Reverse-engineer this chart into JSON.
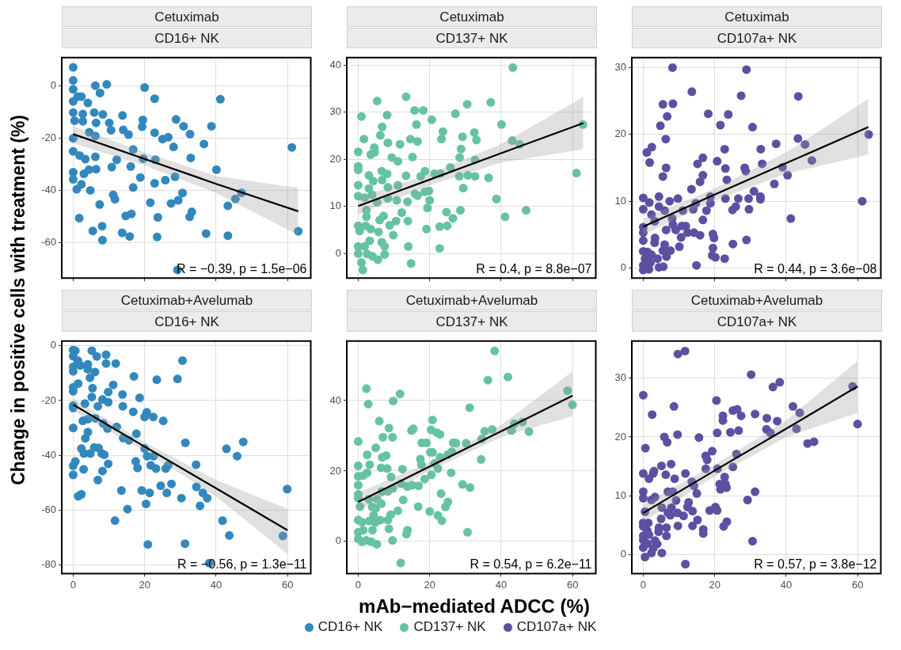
{
  "chart_data": [
    {
      "type": "scatter",
      "title": "Cetuximab",
      "subtitle": "CD16+ NK",
      "annotations": [
        "R = −0.39, p = 1.5e−06"
      ],
      "xlim": [
        -3.2,
        66.5
      ],
      "xticks": [
        0,
        20,
        40,
        60
      ],
      "ylim": [
        -73.5,
        10.7
      ],
      "yticks": [
        -60,
        -40,
        -20,
        0
      ],
      "tick_labels": "y",
      "grid": true,
      "series": [
        {
          "type": "scatter",
          "marker": "circle",
          "color": "#3288bd",
          "x": [
            0,
            0,
            0,
            0,
            1.3,
            2.3,
            4.1,
            6.2,
            9.4,
            7.5,
            20,
            22.8,
            41.2,
            0,
            2.7,
            5.9,
            8.3,
            13.8,
            0.4,
            2.7,
            6.4,
            10.1,
            19.5,
            28.8,
            30.9,
            38.7,
            19.3,
            10.6,
            14,
            15.5,
            0,
            4.5,
            6.2,
            22.8,
            25,
            26.6,
            32.7,
            28.1,
            36.6,
            61.2,
            0,
            1.8,
            3.4,
            6.2,
            12.2,
            16.8,
            19.6,
            23,
            32.9,
            0,
            0,
            3,
            4.4,
            6.4,
            10.8,
            16.1,
            18.8,
            16.8,
            22.8,
            25.8,
            28.5,
            40.1,
            1,
            2.3,
            4.8,
            11.2,
            11.7,
            21.6,
            27.4,
            30.6,
            29.4,
            43.3,
            45.4,
            47.1,
            7.4,
            1.7,
            14.7,
            16.3,
            23.7,
            33.2,
            32.6,
            8.1,
            5.5,
            8.2,
            13.7,
            15.8,
            23.5,
            37.2,
            43.3,
            63,
            29.2
          ],
          "values": [
            7,
            2,
            -1.4,
            -6,
            -4.2,
            -4.2,
            -6.6,
            0,
            0.5,
            -2.8,
            -0.7,
            -5,
            -5.2,
            -10.3,
            -10.8,
            -10.3,
            -11,
            -11.4,
            -13.4,
            -13.6,
            -14.2,
            -14.2,
            -13.1,
            -12.9,
            -15.5,
            -15.5,
            -15.7,
            -17,
            -16.9,
            -18.7,
            -20.1,
            -17.8,
            -19.2,
            -18,
            -20.4,
            -19.7,
            -18.5,
            -23.4,
            -22.3,
            -23.6,
            -25.1,
            -26.7,
            -28.1,
            -27.2,
            -28.3,
            -24.4,
            -27.9,
            -28.3,
            -27.6,
            -33.1,
            -35.8,
            -33.7,
            -32.1,
            -31.9,
            -31.1,
            -30.9,
            -35.1,
            -38.9,
            -37.3,
            -36.1,
            -34.8,
            -32.1,
            -39.6,
            -37.7,
            -40,
            -41.7,
            -43.4,
            -44.7,
            -45,
            -41,
            -43.8,
            -45.9,
            -43.3,
            -40.9,
            -45.4,
            -50.6,
            -49.8,
            -49,
            -50.3,
            -48.2,
            -50.1,
            -53.7,
            -55.5,
            -59,
            -56.2,
            -57.6,
            -57.8,
            -56.5,
            -57.3,
            -55.6,
            -70.4
          ]
        },
        {
          "type": "line",
          "color": "#000000",
          "x": [
            0,
            20,
            40,
            63
          ],
          "values": [
            -18.5,
            -28,
            -37.5,
            -48
          ],
          "lower": [
            -22,
            -30.5,
            -41,
            -57
          ],
          "upper": [
            -15.5,
            -25.5,
            -34.5,
            -39
          ]
        }
      ]
    },
    {
      "type": "scatter",
      "title": "Cetuximab",
      "subtitle": "CD137+ NK",
      "annotations": [
        "R = 0.4, p = 8.8e−07"
      ],
      "xlim": [
        -3.2,
        66.5
      ],
      "xticks": [
        0,
        20,
        40,
        60
      ],
      "ylim": [
        -5.2,
        41.6
      ],
      "yticks": [
        0,
        10,
        20,
        30,
        40
      ],
      "tick_labels": "y",
      "grid": true,
      "series": [
        {
          "type": "scatter",
          "marker": "circle",
          "color": "#66c2a5",
          "x": [
            43.3,
            13.4,
            5.3,
            37.1,
            30.5,
            15.8,
            18.2,
            27.2,
            0.9,
            8.1,
            20.6,
            16.3,
            6.7,
            40.1,
            62.9,
            23.7,
            32.5,
            6.2,
            1.6,
            23.3,
            29.2,
            33.1,
            14.6,
            8.3,
            11.7,
            16.6,
            43.1,
            45.2,
            4.5,
            28.8,
            0,
            3.5,
            4.6,
            9.4,
            15.2,
            28.4,
            11.1,
            32.7,
            0,
            0,
            6.6,
            18.7,
            25.8,
            61.1,
            3,
            13.4,
            17.5,
            21.4,
            23,
            28.3,
            30.7,
            32.7,
            36.5,
            4.2,
            6.7,
            8.1,
            0,
            3,
            8.3,
            11.1,
            15.9,
            18.6,
            19.8,
            29.4,
            0,
            1.8,
            3.9,
            5.3,
            8.3,
            10.8,
            13.8,
            16.6,
            20,
            38.7,
            2.3,
            7.1,
            12.2,
            19.4,
            24.7,
            28.6,
            47,
            41.1,
            2.3,
            0,
            2.1,
            6,
            8.8,
            10.6,
            13.9,
            26.5,
            0.4,
            3.5,
            5.7,
            9.8,
            19.1,
            22.8,
            24.9,
            3.2,
            6.6,
            0,
            1.8,
            7.4,
            14,
            22.8,
            0,
            2.5,
            4,
            5.5,
            7.4,
            0.9,
            14.8,
            1.3
          ],
          "values": [
            39.5,
            33.3,
            32.4,
            32.1,
            31.7,
            30.4,
            30.4,
            29.7,
            29.1,
            29.4,
            28.4,
            27.4,
            26.9,
            27.4,
            27.4,
            25.9,
            25.7,
            25.1,
            24.3,
            24.3,
            24.8,
            24.1,
            24.3,
            23.5,
            23.2,
            23.8,
            24,
            23.2,
            22.5,
            22.2,
            21.6,
            21,
            21.5,
            20.4,
            20.5,
            20.4,
            19.6,
            19.9,
            18.5,
            17.8,
            17.5,
            17.5,
            18.3,
            17.1,
            16.6,
            16.5,
            16.4,
            17,
            17,
            16.4,
            16.6,
            16.4,
            16.1,
            15.4,
            15.6,
            16.9,
            14.5,
            13.8,
            14.1,
            14.5,
            12.7,
            13.1,
            13.3,
            13.9,
            12.2,
            11.9,
            12.5,
            10.9,
            11.7,
            11.3,
            11,
            12.3,
            11.3,
            11.6,
            9.2,
            8,
            8.7,
            9.7,
            8.8,
            9.2,
            9.2,
            7.8,
            7.8,
            5.9,
            5.9,
            7.1,
            6,
            6.9,
            6.9,
            7.5,
            4.8,
            5.2,
            4.6,
            3.9,
            5.2,
            5.7,
            5.9,
            2.7,
            2.4,
            1.5,
            1.5,
            1.5,
            1.5,
            1.1,
            0,
            -0.1,
            -0.6,
            -1.3,
            -0.2,
            -1.9,
            -2.1,
            -3.5
          ]
        },
        {
          "type": "line",
          "color": "#000000",
          "x": [
            0,
            20,
            40,
            63
          ],
          "values": [
            10.1,
            15.7,
            21.3,
            27.7
          ],
          "lower": [
            8.3,
            14.5,
            19.3,
            22.2
          ],
          "upper": [
            11.9,
            16.9,
            23.3,
            33.2
          ]
        }
      ]
    },
    {
      "type": "scatter",
      "title": "Cetuximab",
      "subtitle": "CD107a+ NK",
      "annotations": [
        "R = 0.44, p = 3.6e−08"
      ],
      "xlim": [
        -3.2,
        66.5
      ],
      "xticks": [
        0,
        20,
        40,
        60
      ],
      "ylim": [
        -1.5,
        31.5
      ],
      "yticks": [
        0,
        10,
        20,
        30
      ],
      "tick_labels": "y",
      "grid": true,
      "series": [
        {
          "type": "scatter",
          "marker": "circle",
          "color": "#5e4fa2",
          "x": [
            8.2,
            28.9,
            13.6,
            27.4,
            43.4,
            5.5,
            8.3,
            18.2,
            23.8,
            6.7,
            21.6,
            30.6,
            4.8,
            6.3,
            43.3,
            63.1,
            37.2,
            45.3,
            1,
            2.4,
            22.8,
            32.9,
            16.7,
            47.2,
            1.8,
            15.2,
            20.7,
            33.3,
            6.4,
            23,
            28.4,
            39,
            28.7,
            5.5,
            16.7,
            40.4,
            15.9,
            23.4,
            36.7,
            13.5,
            31,
            4.4,
            9.7,
            0,
            1.7,
            18.8,
            23,
            26.6,
            29.5,
            32.8,
            32.8,
            61.3,
            4.4,
            7.4,
            14.7,
            18.8,
            0,
            2.3,
            6,
            11.1,
            14,
            17.7,
            25,
            25.9,
            29.6,
            41.3,
            3.2,
            8.1,
            16.7,
            8.3,
            0,
            0,
            6.4,
            9.1,
            10.8,
            11.9,
            12.4,
            14.2,
            15.9,
            19.5,
            10.6,
            3.3,
            0,
            19.8,
            28.9,
            3.2,
            6,
            10.1,
            25.1,
            0,
            1.2,
            5.5,
            7.6,
            2.3,
            6.5,
            19.5,
            19.3,
            20.2,
            0.5,
            4,
            2,
            22.8,
            0,
            4.4,
            5.6,
            14.9,
            0,
            1.6
          ],
          "values": [
            30,
            29.7,
            26.4,
            25.8,
            25.7,
            24.5,
            24.6,
            23.1,
            23,
            22.7,
            21.4,
            21.1,
            21.3,
            19.3,
            19.4,
            20,
            18.6,
            18.5,
            17.3,
            18.1,
            17.8,
            17.8,
            16.5,
            16.1,
            15.8,
            15.6,
            16,
            15.6,
            15,
            14.9,
            15,
            15.1,
            14.5,
            13.7,
            13.9,
            13.9,
            12.9,
            13.2,
            12.6,
            11.8,
            11.5,
            10.7,
            10.4,
            10.5,
            9.8,
            10.7,
            10.4,
            10.4,
            10.4,
            10.7,
            10.3,
            10,
            9.2,
            10,
            9.7,
            9.7,
            8.8,
            8,
            8.6,
            8.6,
            8.8,
            8.6,
            8.7,
            9.2,
            8.8,
            7.4,
            7,
            7.4,
            7.2,
            6.5,
            6.1,
            5.3,
            5.7,
            5.7,
            6.3,
            6.3,
            5.3,
            5.3,
            4.9,
            5.1,
            4.6,
            4.5,
            4.1,
            4.5,
            4.2,
            3.8,
            3.5,
            3.2,
            3.6,
            2.5,
            2.4,
            2.6,
            2.6,
            2,
            1.7,
            3,
            1.9,
            1.6,
            1.4,
            1.4,
            0.8,
            1.4,
            0.4,
            0.1,
            0.2,
            0.4,
            -0.3,
            -0.2
          ]
        },
        {
          "type": "line",
          "color": "#000000",
          "x": [
            0,
            20,
            40,
            63
          ],
          "values": [
            6.2,
            11,
            15.7,
            21.1
          ],
          "lower": [
            5,
            10.1,
            14.1,
            17
          ],
          "upper": [
            7.4,
            11.9,
            17.3,
            25.3
          ]
        }
      ]
    },
    {
      "type": "scatter",
      "title": "Cetuximab+Avelumab",
      "subtitle": "CD16+ NK",
      "ylabel": "Change in positive cells with treatment (%)",
      "legend": "bottom",
      "annotations": [
        "R = −0.56, p = 1.3e−11"
      ],
      "xlim": [
        -3.2,
        66.5
      ],
      "xticks": [
        0,
        20,
        40,
        60
      ],
      "ylim": [
        -83.1,
        1.7
      ],
      "yticks": [
        -80,
        -60,
        -40,
        -20,
        0
      ],
      "grid": true,
      "series": [
        {
          "type": "scatter",
          "marker": "circle",
          "name": "CD16+ NK",
          "color": "#3288bd",
          "x": [
            0,
            0.6,
            5.2,
            6.6,
            9.2,
            0,
            1.3,
            30.6,
            4.1,
            9.2,
            11.9,
            0,
            2,
            0,
            6.1,
            4.1,
            17,
            4.7,
            23.4,
            29.2,
            1.4,
            11.2,
            0,
            5.4,
            0,
            9.8,
            13.8,
            5.2,
            18.6,
            8.2,
            9.8,
            0,
            3.3,
            6.9,
            13.9,
            0,
            16.8,
            20.6,
            20,
            22.4,
            25.2,
            2.7,
            4.1,
            6.2,
            8.4,
            0,
            12.2,
            9.6,
            4.1,
            17.7,
            3.4,
            14,
            15.6,
            31.4,
            47.6,
            42.9,
            2.3,
            5.9,
            7.1,
            20,
            3,
            4.8,
            8,
            8.7,
            20.7,
            22.5,
            45.9,
            17.5,
            9.8,
            26.6,
            34.4,
            0.6,
            0,
            21.7,
            23.2,
            25.9,
            18,
            0,
            2.9,
            8.2,
            6.9,
            27.5,
            24.5,
            34.5,
            13.5,
            19.2,
            21.4,
            26.2,
            36.3,
            59.9,
            1.4,
            2.3,
            30.3,
            37.5,
            20.4,
            35.5,
            15.2,
            11.7,
            41.8,
            43.7,
            58.7,
            20.9,
            31.3,
            38.1
          ],
          "values": [
            -1.6,
            -1.8,
            -1.8,
            -3.9,
            -3.3,
            -3.8,
            -5.4,
            -5.4,
            -6.8,
            -6.5,
            -6.5,
            -7.7,
            -7.2,
            -9.3,
            -9.6,
            -8.6,
            -11.2,
            -11.7,
            -12.4,
            -12.1,
            -13.8,
            -14.3,
            -15.2,
            -15.5,
            -16.6,
            -16.9,
            -17.8,
            -18.7,
            -19,
            -19.6,
            -20.6,
            -21.8,
            -21.1,
            -22.1,
            -22.1,
            -22.7,
            -24.1,
            -24.3,
            -26,
            -26,
            -27.4,
            -27.4,
            -26.8,
            -26.5,
            -28.4,
            -30,
            -29.6,
            -30.2,
            -31.5,
            -32.1,
            -33.8,
            -33.7,
            -34.5,
            -35.4,
            -35.1,
            -37.6,
            -37.5,
            -37.1,
            -37.3,
            -37.5,
            -39.3,
            -39.3,
            -39.3,
            -39.8,
            -40.3,
            -40.3,
            -40.3,
            -42.2,
            -43.1,
            -43.6,
            -43.4,
            -42.2,
            -43.8,
            -43.6,
            -44.8,
            -44.8,
            -44.6,
            -47.1,
            -45.1,
            -45.7,
            -49,
            -50.4,
            -51.1,
            -51.5,
            -52.8,
            -52.8,
            -53.7,
            -53.7,
            -53.7,
            -52.3,
            -54.9,
            -54.2,
            -55.6,
            -55.6,
            -57.7,
            -58.4,
            -59.6,
            -63.8,
            -63.8,
            -69.2,
            -69.4,
            -72.5,
            -72.2,
            -79.3
          ]
        },
        {
          "type": "line",
          "color": "#000000",
          "x": [
            0,
            20,
            40,
            60
          ],
          "values": [
            -21.5,
            -36.8,
            -52,
            -67.3
          ],
          "lower": [
            -23.8,
            -38.4,
            -55,
            -76
          ],
          "upper": [
            -19.3,
            -35.2,
            -49,
            -59.5
          ]
        }
      ]
    },
    {
      "type": "scatter",
      "title": "Cetuximab+Avelumab",
      "subtitle": "CD137+ NK",
      "xlabel": "mAb−mediated ADCC (%)",
      "legend": "bottom",
      "annotations": [
        "R = 0.54, p = 6.2e−11"
      ],
      "xlim": [
        -3.2,
        66.5
      ],
      "xticks": [
        0,
        20,
        40,
        60
      ],
      "ylim": [
        -9.1,
        56.9
      ],
      "yticks": [
        0,
        20,
        40
      ],
      "grid": true,
      "series": [
        {
          "type": "scatter",
          "marker": "circle",
          "name": "CD137+ NK",
          "color": "#66c2a5",
          "x": [
            38.2,
            36.3,
            41.9,
            2.3,
            11.7,
            9.8,
            2.8,
            31.2,
            58.6,
            60,
            5.9,
            20.8,
            15.4,
            14.9,
            8.6,
            20.4,
            22,
            22.9,
            6.9,
            9.6,
            35.4,
            37.5,
            42.9,
            43.7,
            46,
            47.8,
            0,
            17.8,
            19.1,
            26.6,
            27.4,
            30.2,
            34.6,
            4.9,
            20.2,
            20.8,
            26.2,
            25.1,
            2.5,
            7.8,
            6.7,
            17.4,
            22.9,
            34.4,
            3.2,
            17.7,
            0,
            6.4,
            8.1,
            12.4,
            21.4,
            22.3,
            2.5,
            26,
            0,
            1.4,
            9.2,
            20.5,
            18.6,
            0,
            12,
            13.7,
            15.1,
            16.9,
            29.2,
            31.3,
            6.6,
            8.3,
            9.7,
            0,
            23.2,
            0,
            3,
            5.3,
            6.5,
            12.6,
            25.1,
            0.5,
            3.9,
            4.9,
            16.8,
            24.4,
            11.1,
            4.3,
            9.1,
            20,
            22.3,
            23.4,
            0,
            1.1,
            3.1,
            4.8,
            6.2,
            8.3,
            4,
            8.6,
            13.8,
            13.5,
            30.6,
            0,
            1.4,
            0,
            1.1,
            2.3,
            3.7,
            5.2,
            9.6,
            11.9
          ],
          "values": [
            54.1,
            45.8,
            46.7,
            43.4,
            41.9,
            39.9,
            39,
            38,
            42.8,
            38.8,
            34.2,
            34.5,
            32,
            31.5,
            32.2,
            31.7,
            30.9,
            30.4,
            29.6,
            29.6,
            31.3,
            31.8,
            31.5,
            33.4,
            33.9,
            31.2,
            28.4,
            28,
            28,
            28,
            27.9,
            27.9,
            29.1,
            26.6,
            25.3,
            25.3,
            25.5,
            24.7,
            24.6,
            24.4,
            23.9,
            23.4,
            23.9,
            23.3,
            21.8,
            21.8,
            21.5,
            20.9,
            20.7,
            20.5,
            22.2,
            20.7,
            19.5,
            19.5,
            18.5,
            18.7,
            18.3,
            18.9,
            17.7,
            16,
            16.4,
            15.6,
            16,
            15.8,
            16.2,
            15.3,
            14.2,
            14.2,
            15.1,
            13.4,
            13.6,
            12.3,
            12,
            12,
            10.7,
            11.8,
            11.2,
            9.9,
            9.8,
            9.4,
            9.9,
            9.8,
            8.7,
            7.4,
            7.6,
            8.5,
            7.4,
            5.9,
            6.1,
            5.5,
            5.8,
            5.4,
            6.1,
            6.1,
            3.2,
            3.6,
            3.2,
            2.1,
            2.6,
            2.6,
            3.2,
            0.7,
            -0.1,
            0.3,
            -0.1,
            -0.8,
            0.3,
            -6.1
          ]
        },
        {
          "type": "line",
          "color": "#000000",
          "x": [
            0,
            20,
            40,
            60
          ],
          "values": [
            11.2,
            21.3,
            31.3,
            41.4
          ],
          "lower": [
            8.8,
            20.1,
            29.6,
            35.6
          ],
          "upper": [
            13.8,
            22.5,
            33,
            48.3
          ]
        }
      ]
    },
    {
      "type": "scatter",
      "title": "Cetuximab+Avelumab",
      "subtitle": "CD107a+ NK",
      "legend": "bottom",
      "annotations": [
        "R = 0.57, p = 3.8e−12"
      ],
      "xlim": [
        -3.2,
        66.5
      ],
      "xticks": [
        0,
        20,
        40,
        60
      ],
      "ylim": [
        -3.2,
        36.3
      ],
      "yticks": [
        0,
        10,
        20,
        30
      ],
      "grid": true,
      "series": [
        {
          "type": "scatter",
          "marker": "circle",
          "name": "CD107a+ NK",
          "color": "#5e4fa2",
          "x": [
            9.7,
            11.7,
            0,
            30.2,
            36.3,
            38.2,
            58.6,
            20.5,
            8.6,
            2.5,
            25.1,
            26.3,
            27.4,
            31.3,
            22.3,
            22.3,
            34.6,
            41.9,
            43.8,
            37.5,
            60,
            34.5,
            35.6,
            42.9,
            9.6,
            5.9,
            6.7,
            15.6,
            20.7,
            24.4,
            26.7,
            0.6,
            19.3,
            17.5,
            17.9,
            26.1,
            46,
            47.8,
            7.8,
            5.1,
            0,
            1.6,
            2.8,
            3,
            6.3,
            8.8,
            11.8,
            17.5,
            20.8,
            25.1,
            22.8,
            13.6,
            14.2,
            21.4,
            23,
            23.3,
            21.6,
            0,
            0,
            2.3,
            3.3,
            6.9,
            8.3,
            9.2,
            15,
            31.3,
            29.2,
            12.7,
            12.4,
            13.8,
            5.2,
            7.9,
            18.6,
            20.2,
            20.7,
            0.5,
            6.9,
            7.6,
            9.6,
            11.3,
            5,
            15.2,
            23.4,
            0,
            1.4,
            0,
            9.7,
            13.8,
            22.5,
            4.4,
            1.1,
            6.5,
            16.8,
            16.8,
            1.6,
            4.3,
            0,
            6.5,
            0,
            3.3,
            1.1,
            3.9,
            30.6,
            0,
            2.8,
            2.3,
            5.2,
            0.5,
            11.8
          ],
          "values": [
            34.1,
            34.6,
            27.1,
            30.6,
            28.5,
            29.3,
            28.6,
            26.2,
            25.2,
            23.8,
            24.5,
            24.7,
            23.6,
            23.9,
            23.6,
            22.8,
            23.2,
            25.2,
            24.1,
            22.7,
            22.2,
            21.3,
            20.7,
            21.4,
            20.4,
            20,
            19.1,
            19.9,
            20.7,
            20.8,
            21.1,
            18.1,
            17.6,
            16.8,
            16.1,
            17.1,
            18.9,
            19.2,
            15.4,
            15.1,
            13.8,
            12.9,
            13.8,
            14.2,
            13.6,
            12.9,
            13.8,
            14.6,
            14.6,
            14.9,
            13.2,
            12.4,
            11.7,
            12,
            12,
            11.4,
            11.1,
            10.7,
            9.6,
            9.3,
            9.8,
            10.7,
            10.7,
            9.2,
            10.4,
            10.7,
            9.3,
            8.9,
            8.1,
            7.4,
            8,
            8,
            7.5,
            8.1,
            7.5,
            7.3,
            7.1,
            6.7,
            7.1,
            6.6,
            6.1,
            5.9,
            5.6,
            5.4,
            5.4,
            4.8,
            4.9,
            4.9,
            4.8,
            4.6,
            4.1,
            4.6,
            4.3,
            3.6,
            3.4,
            3.9,
            3.2,
            3.2,
            2.5,
            2.4,
            1.9,
            1.8,
            2.3,
            1.2,
            1.1,
            0.3,
            0.3,
            -0.4,
            -1.6
          ]
        },
        {
          "type": "line",
          "color": "#000000",
          "x": [
            0,
            20,
            40,
            60
          ],
          "values": [
            7.1,
            14.3,
            21.4,
            28.6
          ],
          "lower": [
            5.6,
            13.3,
            20,
            24.1
          ],
          "upper": [
            8.6,
            15.3,
            22.8,
            32.9
          ]
        }
      ]
    }
  ]
}
